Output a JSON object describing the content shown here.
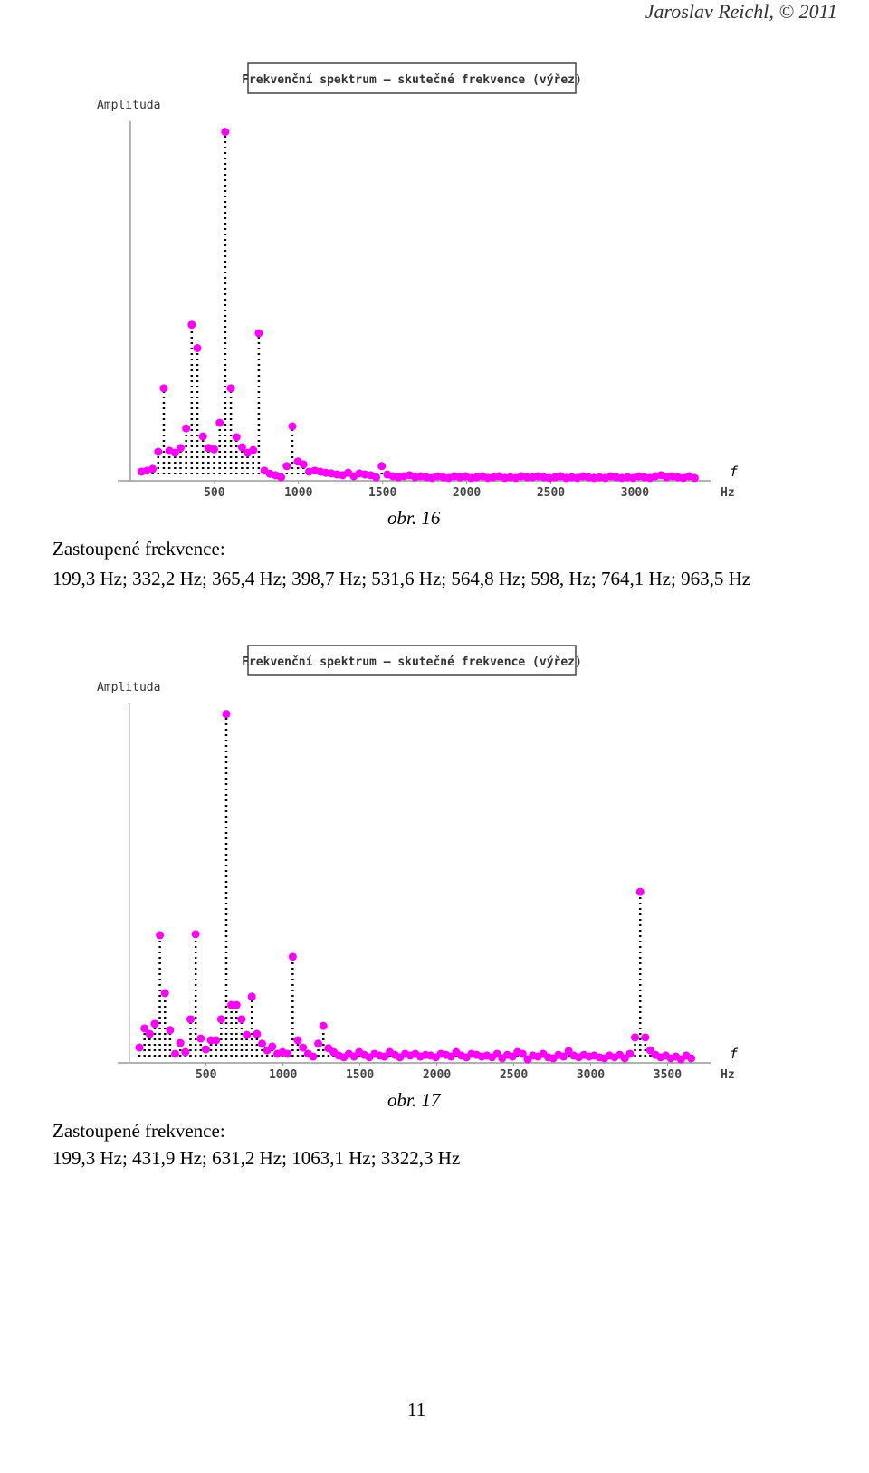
{
  "header": "Jaroslav Reichl, © 2011",
  "chart_data": [
    {
      "type": "stem",
      "title": "Frekvenční spektrum – skutečné frekvence (výřez)",
      "y_label": "Amplituda",
      "x_label": "f",
      "x_unit": "Hz",
      "color": "#ff00ff",
      "xlim": [
        -75,
        3450
      ],
      "xticks": [
        500,
        1000,
        1500,
        2000,
        2500,
        3000
      ],
      "ylim": [
        0,
        103
      ],
      "x": [
        66.4,
        99.7,
        132.9,
        166.1,
        199.3,
        232.5,
        265.8,
        299.0,
        332.2,
        365.4,
        398.7,
        431.9,
        465.1,
        498.3,
        531.6,
        564.8,
        598.0,
        631.2,
        664.4,
        697.6,
        730.8,
        764.1,
        797.3,
        830.5,
        863.7,
        896.9,
        930.2,
        963.5,
        996.6,
        1029.8,
        1063.0,
        1096.3,
        1129.5,
        1162.7,
        1195.9,
        1229.1,
        1262.4,
        1295.6,
        1328.8,
        1362.0,
        1395.2,
        1428.5,
        1461.7,
        1494.9,
        1528.1,
        1561.3,
        1594.6,
        1627.8,
        1661.0,
        1694.2,
        1727.4,
        1760.7,
        1793.9,
        1827.1,
        1860.3,
        1893.5,
        1926.8,
        1960.0,
        1993.2,
        2026.4,
        2059.6,
        2092.9,
        2126.1,
        2159.3,
        2192.5,
        2225.7,
        2259.0,
        2292.2,
        2325.4,
        2358.6,
        2391.8,
        2425.1,
        2458.3,
        2491.5,
        2524.7,
        2557.9,
        2591.2,
        2624.4,
        2657.6,
        2690.8,
        2724.0,
        2757.3,
        2790.5,
        2823.7,
        2856.9,
        2890.1,
        2923.4,
        2956.6,
        2989.8,
        3023.0,
        3056.2,
        3089.5,
        3122.7,
        3155.9,
        3189.1,
        3222.3,
        3255.6,
        3288.8,
        3322.0,
        3355.2
      ],
      "values": [
        2.6,
        2.9,
        3.4,
        8.3,
        26.5,
        8.6,
        8,
        9.4,
        15,
        44.7,
        38,
        12.7,
        9.4,
        9,
        16.6,
        100,
        26.5,
        12.5,
        9.6,
        8,
        8.8,
        42.3,
        2.9,
        2,
        1.6,
        1,
        4.2,
        15.6,
        5.5,
        4.7,
        2.6,
        2.9,
        2.6,
        2.3,
        2.1,
        1.8,
        1.6,
        2.3,
        1.3,
        2.1,
        1.8,
        1.6,
        1,
        4.2,
        1.8,
        1.3,
        1,
        1.3,
        1.6,
        1,
        1.3,
        1,
        0.8,
        1.3,
        1,
        0.8,
        1.3,
        1,
        1.3,
        0.8,
        1,
        1.3,
        0.8,
        1,
        1.3,
        0.8,
        1,
        0.8,
        1.3,
        1,
        1,
        1.3,
        1,
        0.8,
        1,
        1.3,
        0.8,
        1,
        0.8,
        1.3,
        1,
        0.8,
        1,
        0.8,
        1.3,
        1,
        0.8,
        1,
        0.8,
        1.3,
        1,
        0.8,
        1.3,
        1.6,
        1,
        1.3,
        1,
        0.8,
        1.3,
        0.8
      ]
    },
    {
      "type": "stem",
      "title": "Frekvenční spektrum – skutečné frekvence (výřez)",
      "y_label": "Amplituda",
      "x_label": "f",
      "x_unit": "Hz",
      "color": "#ff00ff",
      "xlim": [
        -75,
        3780
      ],
      "xticks": [
        500,
        1000,
        1500,
        2000,
        2500,
        3000,
        3500
      ],
      "ylim": [
        0,
        103
      ],
      "x": [
        66.4,
        99.7,
        132.9,
        166.1,
        199.3,
        232.5,
        265.8,
        299.0,
        332.2,
        365.4,
        398.6,
        431.9,
        465.1,
        498.3,
        531.5,
        564.7,
        598.0,
        631.2,
        664.4,
        697.6,
        730.8,
        764.1,
        797.3,
        830.5,
        863.7,
        896.9,
        930.2,
        963.4,
        996.6,
        1029.8,
        1063.1,
        1096.3,
        1129.5,
        1162.7,
        1195.9,
        1229.1,
        1262.4,
        1295.6,
        1328.8,
        1362.0,
        1395.2,
        1428.5,
        1461.7,
        1494.9,
        1528.1,
        1561.3,
        1594.6,
        1627.8,
        1661.0,
        1694.2,
        1727.4,
        1760.7,
        1793.9,
        1827.1,
        1860.3,
        1893.5,
        1926.8,
        1960.0,
        1993.2,
        2026.4,
        2059.6,
        2092.9,
        2126.1,
        2159.3,
        2192.5,
        2225.7,
        2259.0,
        2292.2,
        2325.4,
        2358.6,
        2391.8,
        2425.1,
        2458.3,
        2491.5,
        2524.7,
        2557.9,
        2591.2,
        2624.4,
        2657.6,
        2690.8,
        2724.0,
        2757.3,
        2790.5,
        2823.7,
        2856.9,
        2890.1,
        2923.4,
        2956.6,
        2989.8,
        3023.0,
        3056.2,
        3089.5,
        3122.7,
        3155.9,
        3189.1,
        3222.3,
        3255.6,
        3288.8,
        3322.3,
        3355.2,
        3388.4,
        3421.6,
        3454.9,
        3488.1,
        3521.3,
        3554.5,
        3587.7,
        3621.0,
        3654.2
      ],
      "values": [
        4.4,
        9.9,
        8.3,
        11.2,
        36.6,
        20,
        9.4,
        2.6,
        5.7,
        3.1,
        12.5,
        36.9,
        7,
        3.9,
        6.5,
        6.5,
        12.5,
        100,
        16.6,
        16.6,
        12.5,
        8,
        19,
        8.3,
        5.5,
        3.6,
        4.7,
        2.6,
        3.1,
        2.6,
        30.4,
        6.5,
        4.4,
        2.6,
        1.8,
        5.5,
        10.6,
        4.2,
        3.1,
        2.1,
        1.6,
        2.6,
        1.8,
        3.1,
        2.3,
        1.6,
        2.6,
        2.1,
        1.8,
        3.1,
        2.3,
        1.6,
        2.6,
        2.1,
        2.6,
        1.8,
        2.3,
        2.1,
        1.6,
        2.6,
        2.3,
        1.8,
        3.1,
        2.1,
        1.6,
        2.6,
        2.3,
        1.8,
        2.1,
        1.6,
        2.6,
        1.3,
        2.3,
        1.8,
        3.1,
        2.6,
        1,
        2.1,
        1.8,
        2.6,
        1.6,
        1.3,
        2.3,
        1.8,
        3.4,
        2.1,
        1.6,
        2.3,
        1.8,
        2.1,
        1.6,
        1.3,
        2.1,
        1.6,
        2.3,
        1.3,
        2.6,
        7.3,
        49,
        7.3,
        3.6,
        2.3,
        1.6,
        2.1,
        1.3,
        1.8,
        1,
        2.1,
        1.3
      ]
    }
  ],
  "figures": [
    {
      "caption": "obr. 16",
      "label": "Zastoupené frekvence:",
      "frequencies": "199,3 Hz; 332,2 Hz; 365,4 Hz; 398,7 Hz; 531,6 Hz; 564,8 Hz; 598, Hz; 764,1 Hz; 963,5 Hz"
    },
    {
      "caption": "obr. 17",
      "label": "Zastoupené frekvence:",
      "frequencies": "199,3 Hz; 431,9 Hz; 631,2 Hz; 1063,1 Hz; 3322,3 Hz"
    }
  ],
  "page_number": "11"
}
